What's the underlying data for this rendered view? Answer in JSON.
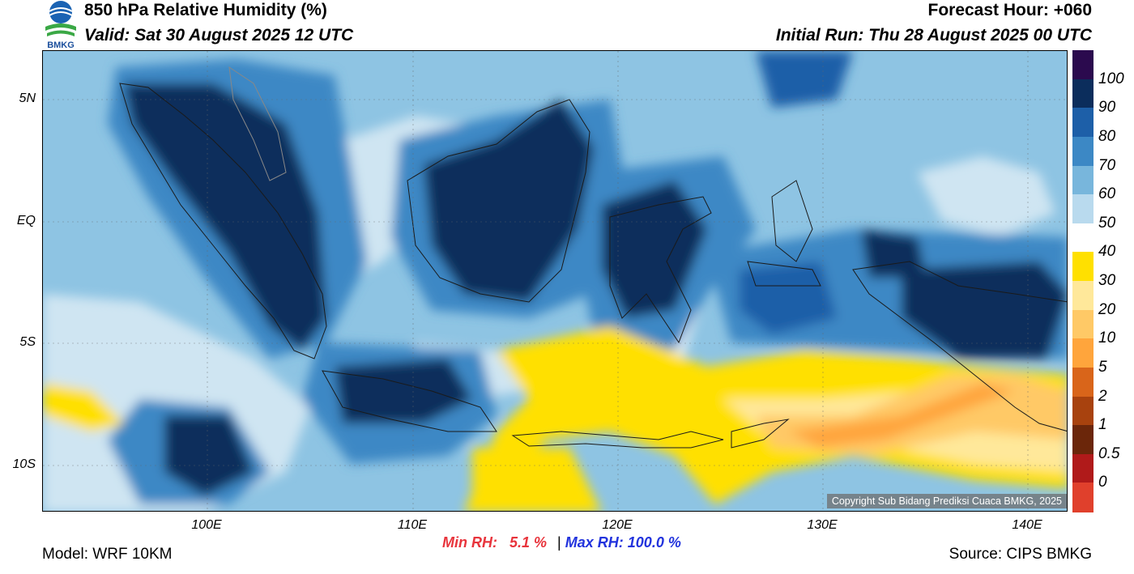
{
  "header": {
    "title": "850 hPa Relative Humidity (%)",
    "valid": "Valid: Sat 30 August 2025 12 UTC",
    "forecast_hour": "Forecast Hour: +060",
    "initial_run": "Initial Run: Thu 28 August 2025 00 UTC"
  },
  "logo": {
    "text": "BMKG"
  },
  "map": {
    "y_ticks": [
      "5N",
      "EQ",
      "5S",
      "10S"
    ],
    "x_ticks": [
      "100E",
      "110E",
      "120E",
      "130E",
      "140E"
    ],
    "copyright": "Copyright Sub Bidang Prediksi Cuaca BMKG, 2025"
  },
  "colorbar": {
    "labels": [
      "100",
      "90",
      "80",
      "70",
      "60",
      "50",
      "40",
      "30",
      "20",
      "10",
      "5",
      "2",
      "1",
      "0.5",
      "0"
    ],
    "colors": [
      "#2b0a4e",
      "#0b2d5c",
      "#1d5fa8",
      "#3c88c5",
      "#78b6dc",
      "#b9daee",
      "#ffffff",
      "#ffe000",
      "#ffe89a",
      "#ffc966",
      "#ffa53c",
      "#d9651a",
      "#a8420e",
      "#6b260a",
      "#b01a1a",
      "#e0402c"
    ]
  },
  "stats": {
    "min_label": "Min RH:",
    "min_value": "5.1 %",
    "separator": "|",
    "max_label": "Max RH:",
    "max_value": "100.0 %",
    "min_color": "#e8343c",
    "max_color": "#2233dd"
  },
  "footer": {
    "model": "Model: WRF 10KM",
    "source": "Source: CIPS BMKG"
  }
}
